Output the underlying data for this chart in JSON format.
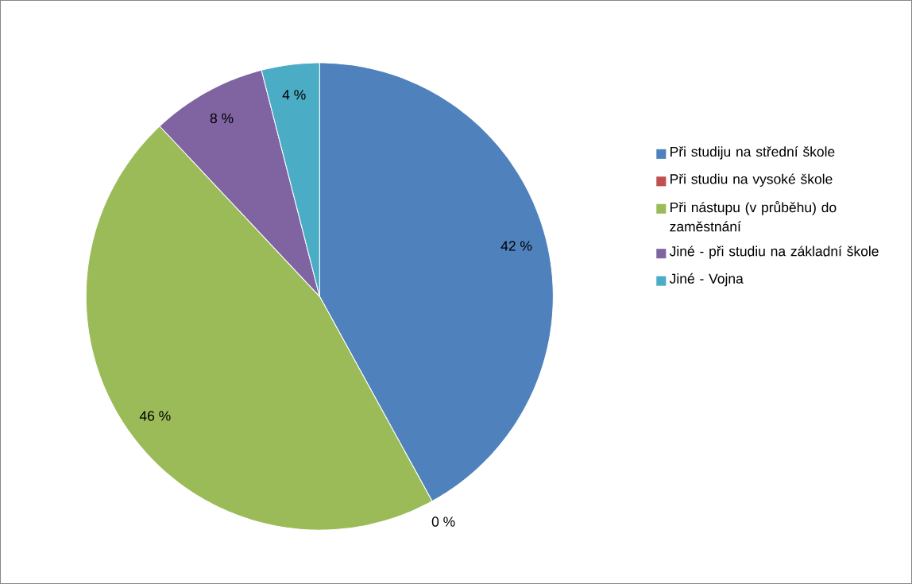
{
  "chart_data": {
    "type": "pie",
    "categories": [
      "Při studiju na střední škole",
      "Při studiu na vysoké škole",
      "Při nástupu (v průběhu) do zaměstnání",
      "Jiné - při studiu na základní škole",
      "Jiné - Vojna"
    ],
    "values": [
      42,
      0,
      46,
      8,
      4
    ],
    "colors": [
      "#4f81bd",
      "#c0504d",
      "#9bbb59",
      "#8064a2",
      "#4bacc6"
    ],
    "value_labels": [
      "42 %",
      "0 %",
      "46 %",
      "8 %",
      "4 %"
    ],
    "legend": "right"
  }
}
